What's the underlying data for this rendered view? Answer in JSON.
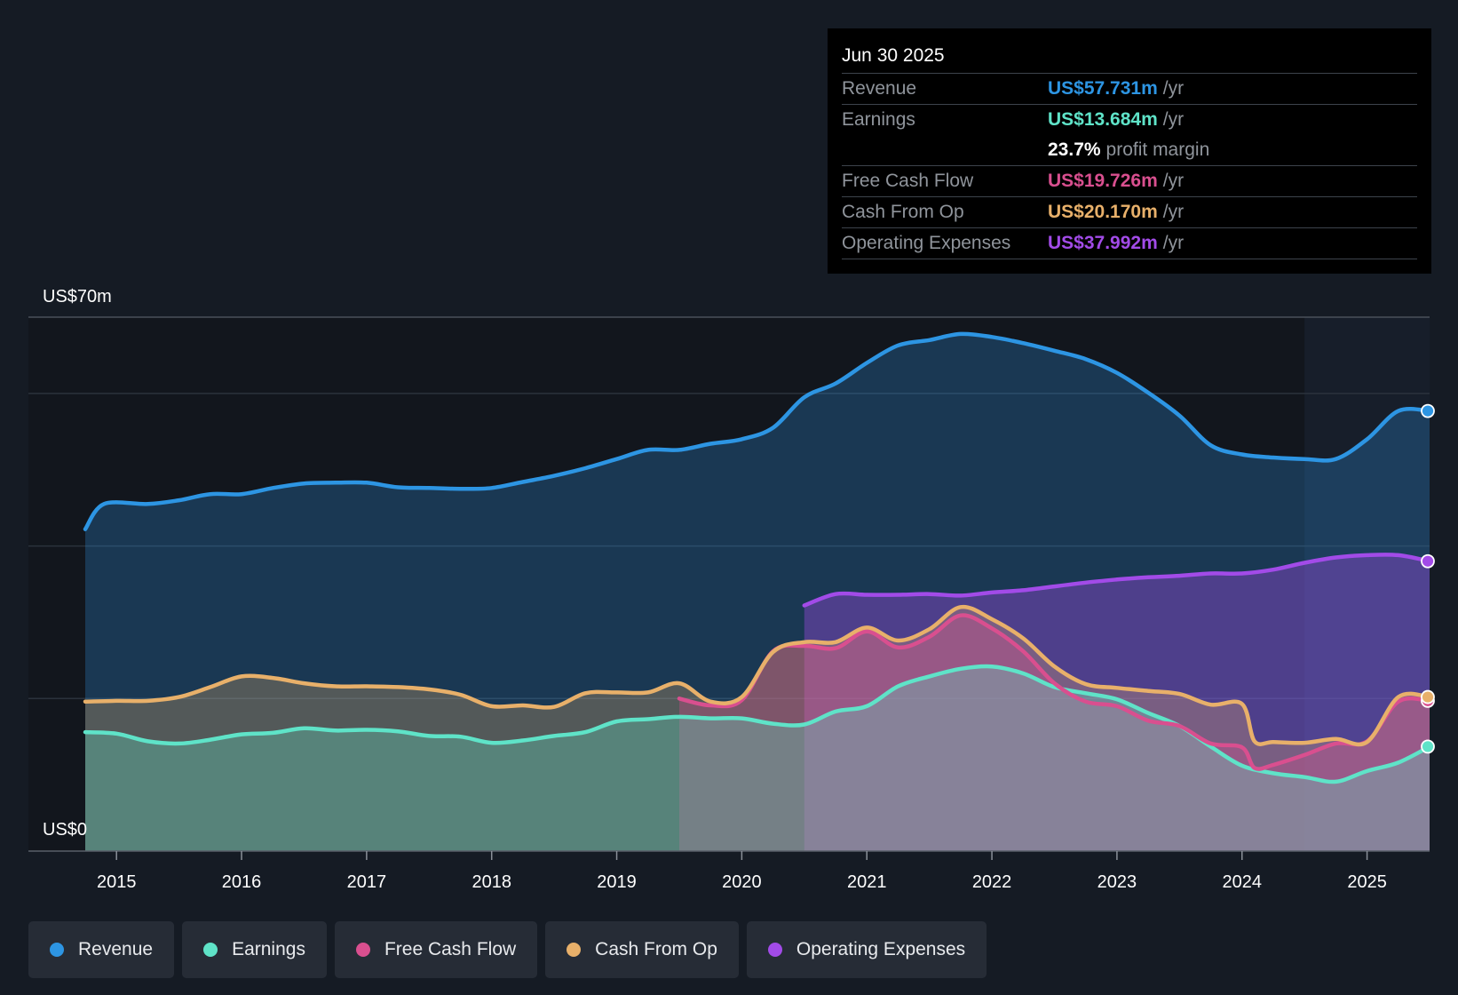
{
  "chart_data": {
    "type": "area",
    "ylabel_top": "US$70m",
    "ylabel_bottom": "US$0",
    "ylim": [
      0,
      70
    ],
    "xlim": [
      2014.75,
      2025.5
    ],
    "x_ticks": [
      "2015",
      "2016",
      "2017",
      "2018",
      "2019",
      "2020",
      "2021",
      "2022",
      "2023",
      "2024",
      "2025"
    ],
    "forecast_start": 2024.5,
    "series": [
      {
        "name": "Revenue",
        "color": "#2d95e3",
        "x": [
          2014.75,
          2014.9,
          2015.25,
          2015.5,
          2015.75,
          2016.0,
          2016.25,
          2016.5,
          2016.75,
          2017.0,
          2017.25,
          2017.5,
          2017.75,
          2018.0,
          2018.25,
          2018.5,
          2018.75,
          2019.0,
          2019.25,
          2019.5,
          2019.75,
          2020.0,
          2020.25,
          2020.5,
          2020.75,
          2021.0,
          2021.25,
          2021.5,
          2021.75,
          2022.0,
          2022.25,
          2022.5,
          2022.75,
          2023.0,
          2023.25,
          2023.5,
          2023.75,
          2024.0,
          2024.25,
          2024.5,
          2024.75,
          2025.0,
          2025.25,
          2025.5
        ],
        "values": [
          42.2,
          45.5,
          45.5,
          46,
          46.8,
          46.8,
          47.6,
          48.2,
          48.3,
          48.3,
          47.7,
          47.6,
          47.5,
          47.6,
          48.4,
          49.2,
          50.2,
          51.4,
          52.6,
          52.6,
          53.4,
          54.0,
          55.5,
          59.5,
          61.3,
          64.0,
          66.3,
          67.0,
          67.8,
          67.4,
          66.6,
          65.6,
          64.5,
          62.7,
          60.1,
          57.1,
          53.2,
          52.0,
          51.6,
          51.4,
          51.4,
          54.0,
          57.7,
          57.7
        ]
      },
      {
        "name": "Earnings",
        "color": "#5fe3c8",
        "x": [
          2014.75,
          2015.0,
          2015.25,
          2015.5,
          2015.75,
          2016.0,
          2016.25,
          2016.5,
          2016.75,
          2017.0,
          2017.25,
          2017.5,
          2017.75,
          2018.0,
          2018.25,
          2018.5,
          2018.75,
          2019.0,
          2019.25,
          2019.5,
          2019.75,
          2020.0,
          2020.25,
          2020.5,
          2020.75,
          2021.0,
          2021.25,
          2021.5,
          2021.75,
          2022.0,
          2022.25,
          2022.5,
          2022.75,
          2023.0,
          2023.25,
          2023.5,
          2023.75,
          2024.0,
          2024.25,
          2024.5,
          2024.75,
          2025.0,
          2025.25,
          2025.5
        ],
        "values": [
          15.6,
          15.4,
          14.4,
          14.1,
          14.6,
          15.3,
          15.5,
          16.1,
          15.8,
          15.9,
          15.7,
          15.1,
          15.0,
          14.2,
          14.5,
          15.1,
          15.6,
          17.0,
          17.3,
          17.6,
          17.4,
          17.4,
          16.7,
          16.6,
          18.3,
          19.0,
          21.6,
          22.9,
          23.9,
          24.2,
          23.3,
          21.5,
          20.7,
          19.9,
          18.1,
          16.4,
          13.7,
          11.2,
          10.2,
          9.7,
          9.1,
          10.5,
          11.6,
          13.7
        ]
      },
      {
        "name": "Free Cash Flow",
        "color": "#d94f8f",
        "x": [
          2019.5,
          2019.75,
          2020.0,
          2020.25,
          2020.5,
          2020.75,
          2021.0,
          2021.25,
          2021.5,
          2021.75,
          2022.0,
          2022.25,
          2022.5,
          2022.75,
          2023.0,
          2023.25,
          2023.5,
          2023.75,
          2024.0,
          2024.1,
          2024.25,
          2024.5,
          2024.75,
          2025.0,
          2025.25,
          2025.5
        ],
        "values": [
          20.0,
          19.1,
          19.8,
          26.2,
          26.9,
          26.6,
          28.8,
          26.7,
          28.1,
          30.9,
          29.2,
          26.2,
          22.0,
          19.6,
          19.0,
          17.1,
          16.4,
          14.1,
          13.6,
          10.9,
          11.3,
          12.6,
          14.1,
          14.4,
          19.6,
          19.7
        ]
      },
      {
        "name": "Cash From Op",
        "color": "#e8b06a",
        "x": [
          2014.75,
          2015.0,
          2015.25,
          2015.5,
          2015.75,
          2016.0,
          2016.25,
          2016.5,
          2016.75,
          2017.0,
          2017.25,
          2017.5,
          2017.75,
          2018.0,
          2018.25,
          2018.5,
          2018.75,
          2019.0,
          2019.25,
          2019.5,
          2019.75,
          2020.0,
          2020.25,
          2020.5,
          2020.75,
          2021.0,
          2021.25,
          2021.5,
          2021.75,
          2022.0,
          2022.25,
          2022.5,
          2022.75,
          2023.0,
          2023.25,
          2023.5,
          2023.75,
          2024.0,
          2024.1,
          2024.25,
          2024.5,
          2024.75,
          2025.0,
          2025.25,
          2025.5
        ],
        "values": [
          19.6,
          19.7,
          19.7,
          20.2,
          21.5,
          22.9,
          22.7,
          22.0,
          21.6,
          21.6,
          21.5,
          21.2,
          20.5,
          19.0,
          19.1,
          18.9,
          20.7,
          20.8,
          20.8,
          22.0,
          19.6,
          20.2,
          26.1,
          27.4,
          27.4,
          29.3,
          27.6,
          29.1,
          32.0,
          30.4,
          27.9,
          24.2,
          21.9,
          21.4,
          21.0,
          20.6,
          19.2,
          19.3,
          14.4,
          14.3,
          14.2,
          14.7,
          14.3,
          20.2,
          20.2
        ]
      },
      {
        "name": "Operating Expenses",
        "color": "#a24be8",
        "x": [
          2020.5,
          2020.75,
          2021.0,
          2021.25,
          2021.5,
          2021.75,
          2022.0,
          2022.25,
          2022.5,
          2022.75,
          2023.0,
          2023.25,
          2023.5,
          2023.75,
          2024.0,
          2024.25,
          2024.5,
          2024.75,
          2025.0,
          2025.25,
          2025.5
        ],
        "values": [
          32.2,
          33.7,
          33.6,
          33.6,
          33.7,
          33.5,
          33.9,
          34.2,
          34.7,
          35.2,
          35.6,
          35.9,
          36.1,
          36.4,
          36.4,
          36.9,
          37.8,
          38.5,
          38.8,
          38.8,
          38.0
        ]
      }
    ]
  },
  "tooltip": {
    "date": "Jun 30 2025",
    "rows": [
      {
        "label": "Revenue",
        "value": "US$57.731m",
        "unit": "/yr",
        "color": "#2d95e3"
      },
      {
        "label": "Earnings",
        "value": "US$13.684m",
        "unit": "/yr",
        "color": "#5fe3c8"
      },
      {
        "label": "Free Cash Flow",
        "value": "US$19.726m",
        "unit": "/yr",
        "color": "#d94f8f"
      },
      {
        "label": "Cash From Op",
        "value": "US$20.170m",
        "unit": "/yr",
        "color": "#e8b06a"
      },
      {
        "label": "Operating Expenses",
        "value": "US$37.992m",
        "unit": "/yr",
        "color": "#a24be8"
      }
    ],
    "margin_value": "23.7%",
    "margin_label": "profit margin"
  },
  "legend": [
    {
      "label": "Revenue",
      "color": "#2d95e3"
    },
    {
      "label": "Earnings",
      "color": "#5fe3c8"
    },
    {
      "label": "Free Cash Flow",
      "color": "#d94f8f"
    },
    {
      "label": "Cash From Op",
      "color": "#e8b06a"
    },
    {
      "label": "Operating Expenses",
      "color": "#a24be8"
    }
  ]
}
